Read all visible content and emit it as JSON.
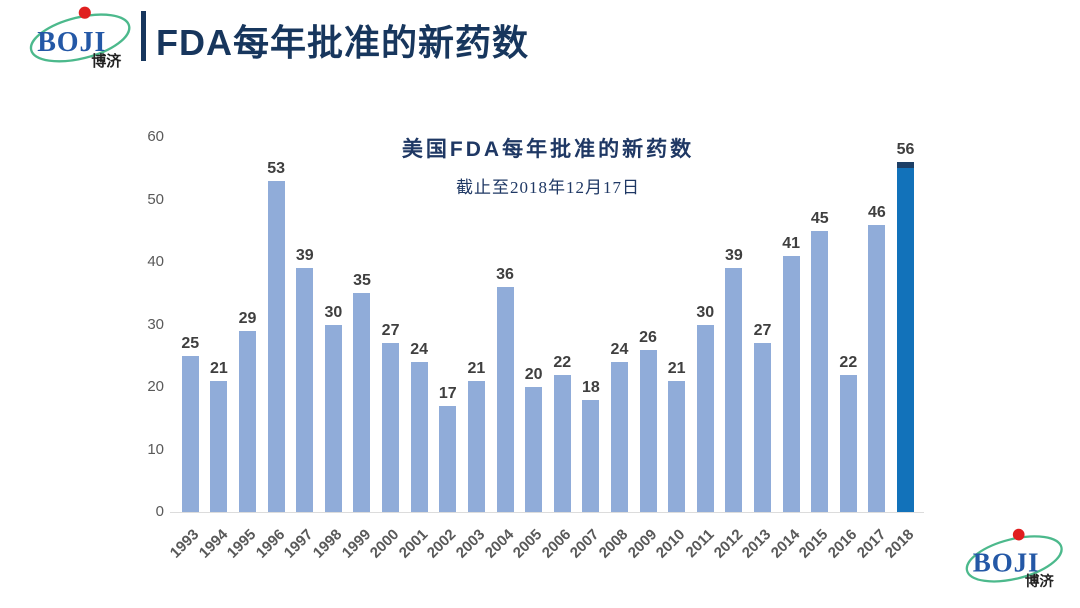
{
  "header": {
    "title": "FDA每年批准的新药数"
  },
  "logo": {
    "text": "BOJI",
    "subtext": "博济"
  },
  "chart_data": {
    "type": "bar",
    "title": "美国FDA每年批准的新药数",
    "subtitle": "截止至2018年12月17日",
    "categories": [
      "1993",
      "1994",
      "1995",
      "1996",
      "1997",
      "1998",
      "1999",
      "2000",
      "2001",
      "2002",
      "2003",
      "2004",
      "2005",
      "2006",
      "2007",
      "2008",
      "2009",
      "2010",
      "2011",
      "2012",
      "2013",
      "2014",
      "2015",
      "2016",
      "2017",
      "2018"
    ],
    "values": [
      25,
      21,
      29,
      53,
      39,
      30,
      35,
      27,
      24,
      17,
      21,
      36,
      20,
      22,
      18,
      24,
      26,
      21,
      30,
      39,
      27,
      41,
      45,
      22,
      46,
      56
    ],
    "xlabel": "",
    "ylabel": "",
    "ylim": [
      0,
      60
    ],
    "yticks": [
      0,
      10,
      20,
      30,
      40,
      50,
      60
    ],
    "grid": false,
    "legend": false,
    "bar_color": "#90acd9",
    "highlight_color": "#1272ba",
    "highlight_index": 25,
    "label_color": "#3f3f3f",
    "axis_color": "#595959"
  },
  "colors": {
    "brand_navy": "#17365d",
    "logo_blue": "#2458a6",
    "logo_green": "#4cb98c",
    "logo_red": "#e01f1f"
  }
}
